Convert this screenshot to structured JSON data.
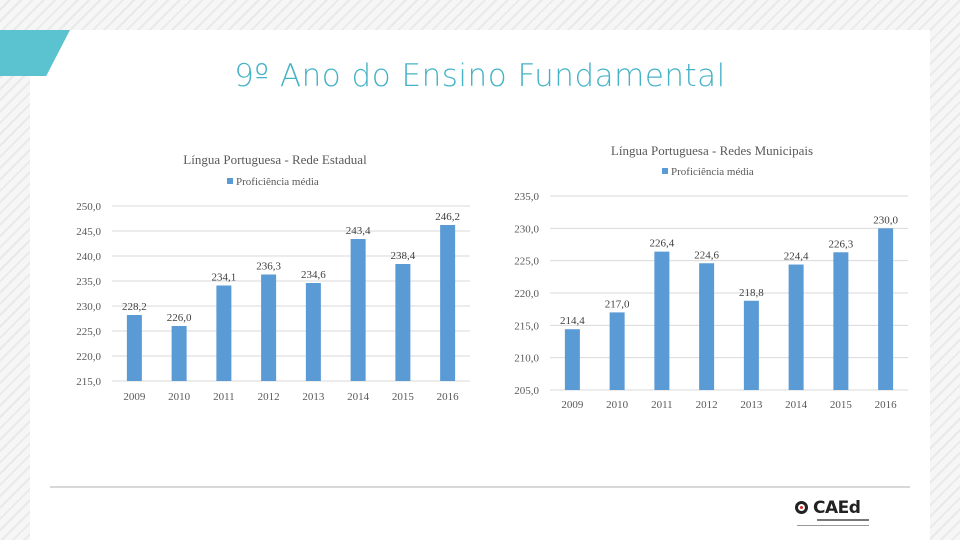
{
  "slide": {
    "title": "9º Ano do Ensino Fundamental",
    "logo_text": "CAEd"
  },
  "colors": {
    "bar": "#5b9bd5",
    "title": "#44b3c7",
    "accent": "#5bc3cf",
    "grid": "#d9d9d9",
    "text": "#595959"
  },
  "chart_data": [
    {
      "type": "bar",
      "title": "Língua Portuguesa - Rede Estadual",
      "legend": "Proficiência média",
      "categories": [
        "2009",
        "2010",
        "2011",
        "2012",
        "2013",
        "2014",
        "2015",
        "2016"
      ],
      "values": [
        228.2,
        226.0,
        234.1,
        236.3,
        234.6,
        243.4,
        238.4,
        246.2
      ],
      "value_labels": [
        "228,2",
        "226,0",
        "234,1",
        "236,3",
        "234,6",
        "243,4",
        "238,4",
        "246,2"
      ],
      "ylim": [
        215,
        250
      ],
      "yticks": [
        215,
        220,
        225,
        230,
        235,
        240,
        245,
        250
      ],
      "ytick_labels": [
        "215,0",
        "220,0",
        "225,0",
        "230,0",
        "235,0",
        "240,0",
        "245,0",
        "250,0"
      ],
      "grid": true,
      "legend_position": "top"
    },
    {
      "type": "bar",
      "title": "Língua Portuguesa - Redes Municipais",
      "legend": "Proficiência média",
      "categories": [
        "2009",
        "2010",
        "2011",
        "2012",
        "2013",
        "2014",
        "2015",
        "2016"
      ],
      "values": [
        214.4,
        217.0,
        226.4,
        224.6,
        218.8,
        224.4,
        226.3,
        230.0
      ],
      "value_labels": [
        "214,4",
        "217,0",
        "226,4",
        "224,6",
        "218,8",
        "224,4",
        "226,3",
        "230,0"
      ],
      "ylim": [
        205,
        235
      ],
      "yticks": [
        205,
        210,
        215,
        220,
        225,
        230,
        235
      ],
      "ytick_labels": [
        "205,0",
        "210,0",
        "215,0",
        "220,0",
        "225,0",
        "230,0",
        "235,0"
      ],
      "grid": true,
      "legend_position": "top"
    }
  ]
}
